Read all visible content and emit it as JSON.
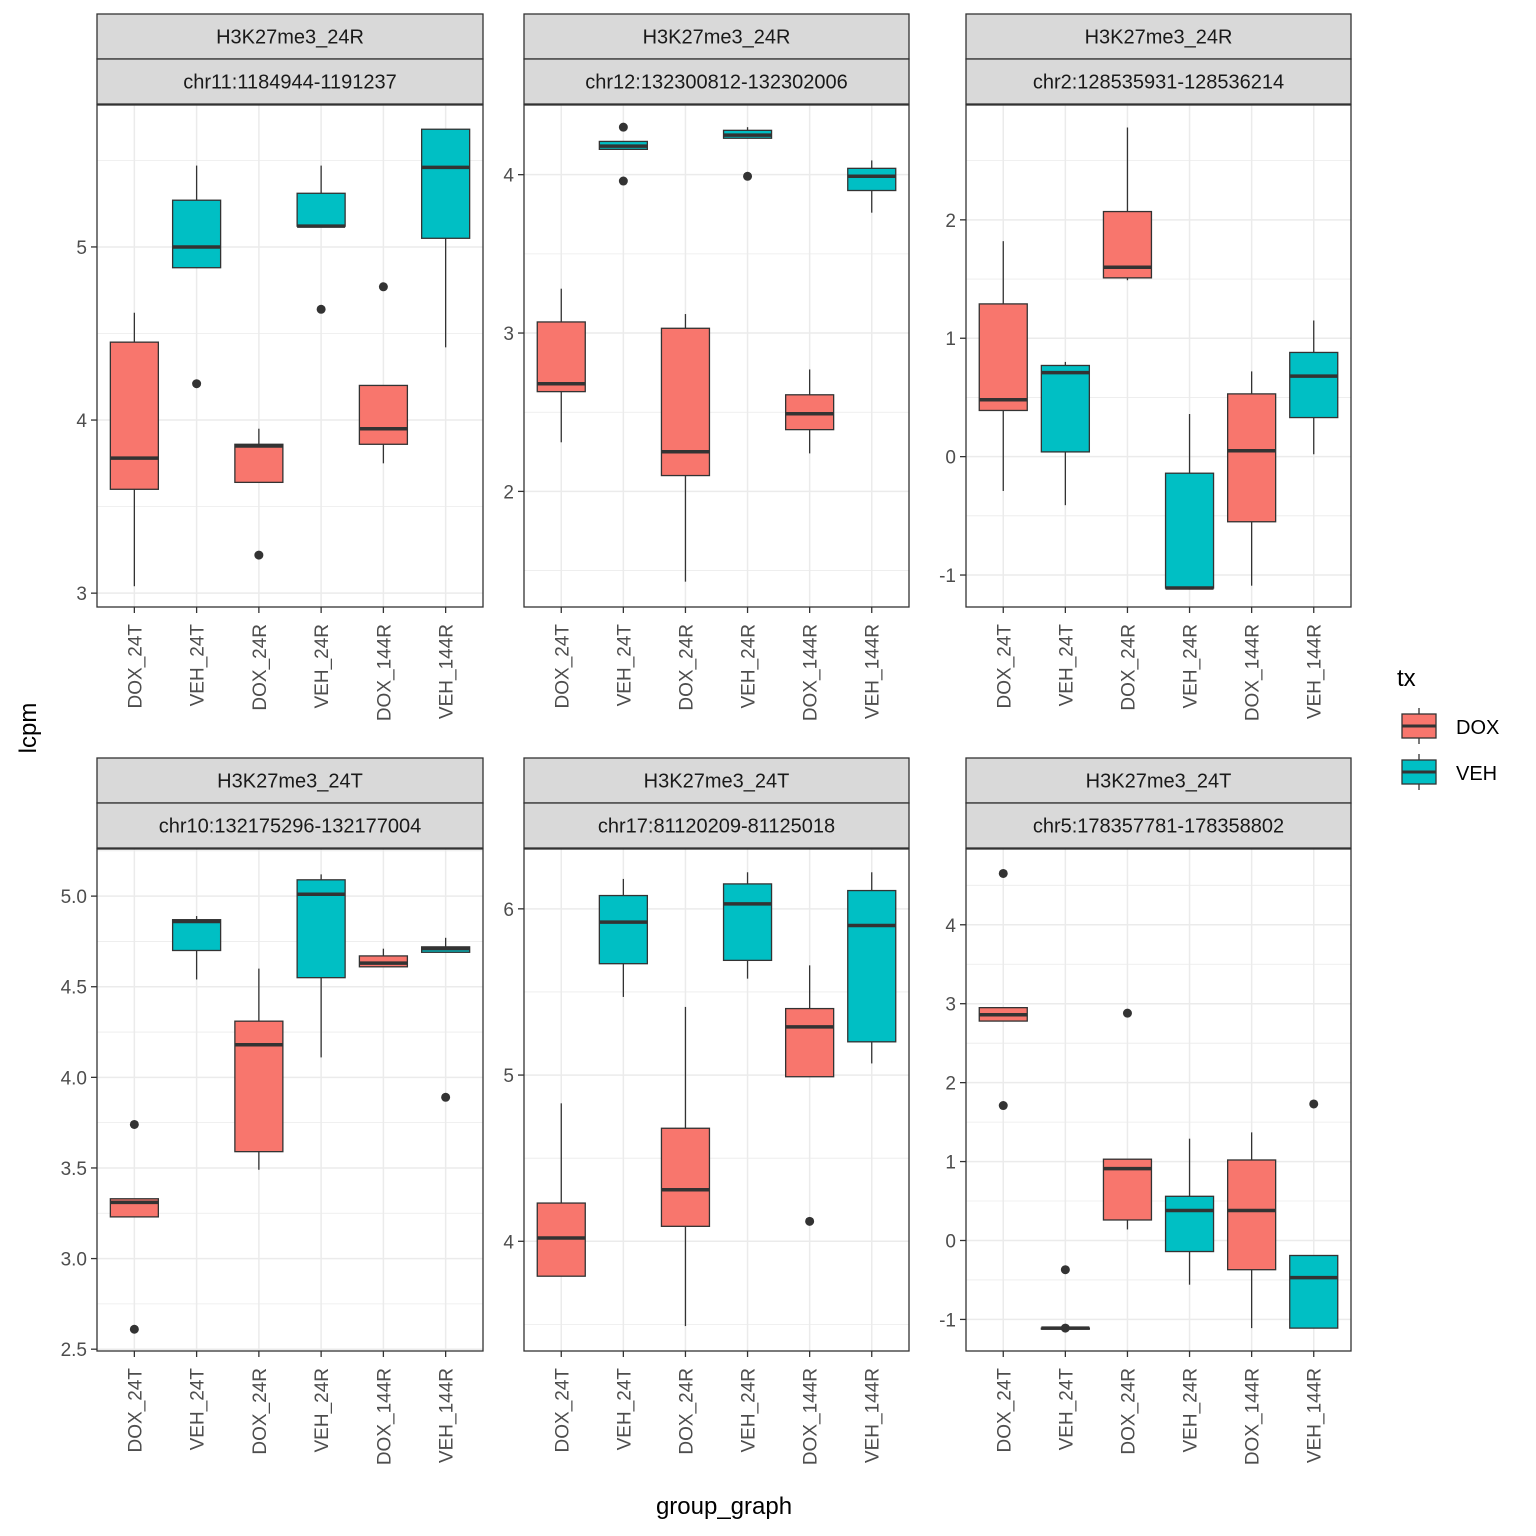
{
  "figure": {
    "xlabel": "group_graph",
    "ylabel": "lcpm",
    "legend": {
      "title": "tx",
      "position": "right",
      "entries": [
        {
          "label": "DOX",
          "color": "#F8766D"
        },
        {
          "label": "VEH",
          "color": "#00BFC4"
        }
      ]
    },
    "colors": {
      "DOX": "#F8766D",
      "VEH": "#00BFC4",
      "strip_bg": "#D9D9D9",
      "grid": "#EBEBEB",
      "border": "#333333"
    }
  },
  "chart_data": [
    {
      "type": "boxplot",
      "strip": [
        "H3K27me3_24R",
        "chr11:1184944-1191237"
      ],
      "categories": [
        "DOX_24T",
        "VEH_24T",
        "DOX_24R",
        "VEH_24R",
        "DOX_144R",
        "VEH_144R"
      ],
      "tx": [
        "DOX",
        "VEH",
        "DOX",
        "VEH",
        "DOX",
        "VEH"
      ],
      "ylim": [
        2.92,
        5.82
      ],
      "yticks": [
        3,
        4,
        5
      ],
      "ytick_labels": [
        "3",
        "4",
        "5"
      ],
      "boxes": [
        {
          "min": 3.04,
          "q1": 3.6,
          "median": 3.78,
          "q3": 4.45,
          "max": 4.62,
          "outliers": []
        },
        {
          "min": 4.88,
          "q1": 4.88,
          "median": 5.0,
          "q3": 5.27,
          "max": 5.47,
          "outliers": [
            4.21
          ]
        },
        {
          "min": 3.64,
          "q1": 3.64,
          "median": 3.85,
          "q3": 3.86,
          "max": 3.95,
          "outliers": [
            3.22
          ]
        },
        {
          "min": 5.12,
          "q1": 5.12,
          "median": 5.12,
          "q3": 5.31,
          "max": 5.47,
          "outliers": [
            4.64
          ]
        },
        {
          "min": 3.75,
          "q1": 3.86,
          "median": 3.95,
          "q3": 4.2,
          "max": 4.2,
          "outliers": [
            4.77
          ]
        },
        {
          "min": 4.42,
          "q1": 5.05,
          "median": 5.46,
          "q3": 5.68,
          "max": 5.68,
          "outliers": []
        }
      ]
    },
    {
      "type": "boxplot",
      "strip": [
        "H3K27me3_24R",
        "chr12:132300812-132302006"
      ],
      "categories": [
        "DOX_24T",
        "VEH_24T",
        "DOX_24R",
        "VEH_24R",
        "DOX_144R",
        "VEH_144R"
      ],
      "tx": [
        "DOX",
        "VEH",
        "DOX",
        "VEH",
        "DOX",
        "VEH"
      ],
      "ylim": [
        1.27,
        4.44
      ],
      "yticks": [
        2,
        3,
        4
      ],
      "ytick_labels": [
        "2",
        "3",
        "4"
      ],
      "boxes": [
        {
          "min": 2.31,
          "q1": 2.63,
          "median": 2.68,
          "q3": 3.07,
          "max": 3.28,
          "outliers": []
        },
        {
          "min": 4.16,
          "q1": 4.16,
          "median": 4.18,
          "q3": 4.21,
          "max": 4.21,
          "outliers": [
            4.3,
            3.96
          ]
        },
        {
          "min": 1.43,
          "q1": 2.1,
          "median": 2.25,
          "q3": 3.03,
          "max": 3.12,
          "outliers": []
        },
        {
          "min": 4.23,
          "q1": 4.23,
          "median": 4.25,
          "q3": 4.28,
          "max": 4.3,
          "outliers": [
            3.99
          ]
        },
        {
          "min": 2.24,
          "q1": 2.39,
          "median": 2.49,
          "q3": 2.61,
          "max": 2.77,
          "outliers": []
        },
        {
          "min": 3.76,
          "q1": 3.9,
          "median": 3.99,
          "q3": 4.04,
          "max": 4.09,
          "outliers": []
        }
      ]
    },
    {
      "type": "boxplot",
      "strip": [
        "H3K27me3_24R",
        "chr2:128535931-128536214"
      ],
      "categories": [
        "DOX_24T",
        "VEH_24T",
        "DOX_24R",
        "VEH_24R",
        "DOX_144R",
        "VEH_144R"
      ],
      "tx": [
        "DOX",
        "VEH",
        "DOX",
        "VEH",
        "DOX",
        "VEH"
      ],
      "ylim": [
        -1.27,
        2.97
      ],
      "yticks": [
        -1,
        0,
        1,
        2
      ],
      "ytick_labels": [
        "-1",
        "0",
        "1",
        "2"
      ],
      "boxes": [
        {
          "min": -0.29,
          "q1": 0.39,
          "median": 0.48,
          "q3": 1.29,
          "max": 1.82,
          "outliers": []
        },
        {
          "min": -0.41,
          "q1": 0.04,
          "median": 0.71,
          "q3": 0.77,
          "max": 0.8,
          "outliers": []
        },
        {
          "min": 1.49,
          "q1": 1.51,
          "median": 1.6,
          "q3": 2.07,
          "max": 2.78,
          "outliers": []
        },
        {
          "min": -1.11,
          "q1": -1.11,
          "median": -1.11,
          "q3": -0.14,
          "max": 0.36,
          "outliers": []
        },
        {
          "min": -1.09,
          "q1": -0.55,
          "median": 0.05,
          "q3": 0.53,
          "max": 0.72,
          "outliers": []
        },
        {
          "min": 0.02,
          "q1": 0.33,
          "median": 0.68,
          "q3": 0.88,
          "max": 1.15,
          "outliers": []
        }
      ]
    },
    {
      "type": "boxplot",
      "strip": [
        "H3K27me3_24T",
        "chr10:132175296-132177004"
      ],
      "categories": [
        "DOX_24T",
        "VEH_24T",
        "DOX_24R",
        "VEH_24R",
        "DOX_144R",
        "VEH_144R"
      ],
      "tx": [
        "DOX",
        "VEH",
        "DOX",
        "VEH",
        "DOX",
        "VEH"
      ],
      "ylim": [
        2.49,
        5.26
      ],
      "yticks": [
        2.5,
        3.0,
        3.5,
        4.0,
        4.5,
        5.0
      ],
      "ytick_labels": [
        "2.5",
        "3.0",
        "3.5",
        "4.0",
        "4.5",
        "5.0"
      ],
      "boxes": [
        {
          "min": 3.23,
          "q1": 3.23,
          "median": 3.31,
          "q3": 3.33,
          "max": 3.33,
          "outliers": [
            3.74,
            2.61
          ]
        },
        {
          "min": 4.54,
          "q1": 4.7,
          "median": 4.86,
          "q3": 4.87,
          "max": 4.89,
          "outliers": []
        },
        {
          "min": 3.49,
          "q1": 3.59,
          "median": 4.18,
          "q3": 4.31,
          "max": 4.6,
          "outliers": []
        },
        {
          "min": 4.11,
          "q1": 4.55,
          "median": 5.01,
          "q3": 5.09,
          "max": 5.12,
          "outliers": []
        },
        {
          "min": 4.61,
          "q1": 4.61,
          "median": 4.63,
          "q3": 4.67,
          "max": 4.71,
          "outliers": []
        },
        {
          "min": 4.69,
          "q1": 4.69,
          "median": 4.71,
          "q3": 4.72,
          "max": 4.77,
          "outliers": [
            3.89
          ]
        }
      ]
    },
    {
      "type": "boxplot",
      "strip": [
        "H3K27me3_24T",
        "chr17:81120209-81125018"
      ],
      "categories": [
        "DOX_24T",
        "VEH_24T",
        "DOX_24R",
        "VEH_24R",
        "DOX_144R",
        "VEH_144R"
      ],
      "tx": [
        "DOX",
        "VEH",
        "DOX",
        "VEH",
        "DOX",
        "VEH"
      ],
      "ylim": [
        3.34,
        6.36
      ],
      "yticks": [
        4,
        5,
        6
      ],
      "ytick_labels": [
        "4",
        "5",
        "6"
      ],
      "boxes": [
        {
          "min": 3.79,
          "q1": 3.79,
          "median": 4.02,
          "q3": 4.23,
          "max": 4.83,
          "outliers": []
        },
        {
          "min": 5.47,
          "q1": 5.67,
          "median": 5.92,
          "q3": 6.08,
          "max": 6.18,
          "outliers": []
        },
        {
          "min": 3.49,
          "q1": 4.09,
          "median": 4.31,
          "q3": 4.68,
          "max": 5.41,
          "outliers": []
        },
        {
          "min": 5.58,
          "q1": 5.69,
          "median": 6.03,
          "q3": 6.15,
          "max": 6.22,
          "outliers": []
        },
        {
          "min": 4.99,
          "q1": 4.99,
          "median": 5.29,
          "q3": 5.4,
          "max": 5.66,
          "outliers": [
            4.12
          ]
        },
        {
          "min": 5.07,
          "q1": 5.2,
          "median": 5.9,
          "q3": 6.11,
          "max": 6.22,
          "outliers": []
        }
      ]
    },
    {
      "type": "boxplot",
      "strip": [
        "H3K27me3_24T",
        "chr5:178357781-178358802"
      ],
      "categories": [
        "DOX_24T",
        "VEH_24T",
        "DOX_24R",
        "VEH_24R",
        "DOX_144R",
        "VEH_144R"
      ],
      "tx": [
        "DOX",
        "VEH",
        "DOX",
        "VEH",
        "DOX",
        "VEH"
      ],
      "ylim": [
        -1.4,
        4.96
      ],
      "yticks": [
        -1,
        0,
        1,
        2,
        3,
        4
      ],
      "ytick_labels": [
        "-1",
        "0",
        "1",
        "2",
        "3",
        "4"
      ],
      "boxes": [
        {
          "min": 2.78,
          "q1": 2.78,
          "median": 2.86,
          "q3": 2.95,
          "max": 2.95,
          "outliers": [
            4.65,
            1.71
          ]
        },
        {
          "min": -1.11,
          "q1": -1.11,
          "median": -1.11,
          "q3": -1.11,
          "max": -1.11,
          "outliers": [
            -0.37,
            -1.11
          ]
        },
        {
          "min": 0.14,
          "q1": 0.26,
          "median": 0.91,
          "q3": 1.03,
          "max": 1.03,
          "outliers": [
            2.88
          ]
        },
        {
          "min": -0.56,
          "q1": -0.14,
          "median": 0.38,
          "q3": 0.56,
          "max": 1.29,
          "outliers": []
        },
        {
          "min": -1.11,
          "q1": -0.37,
          "median": 0.38,
          "q3": 1.02,
          "max": 1.37,
          "outliers": []
        },
        {
          "min": -1.11,
          "q1": -1.11,
          "median": -0.47,
          "q3": -0.19,
          "max": -0.19,
          "outliers": [
            1.73
          ]
        }
      ]
    }
  ]
}
